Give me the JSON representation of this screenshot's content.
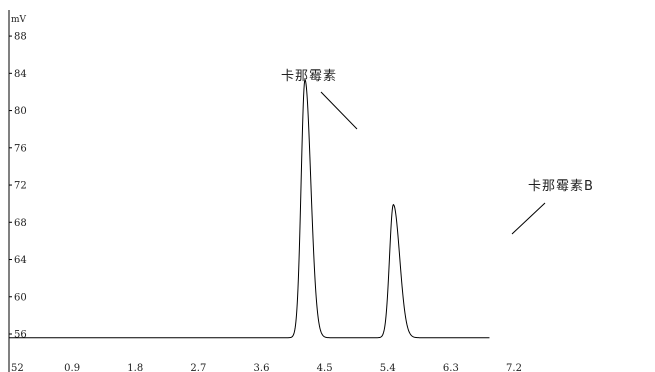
{
  "chart_data": {
    "type": "line",
    "title": "",
    "xlabel": "",
    "ylabel": "mV",
    "xlim": [
      0.0,
      7.2
    ],
    "ylim": [
      52,
      90
    ],
    "x_ticks": [
      0.9,
      1.8,
      2.7,
      3.6,
      4.5,
      5.4,
      6.3,
      7.2
    ],
    "x_tick_labels": [
      "0.9",
      "1.8",
      "2.7",
      "3.6",
      "4.5",
      "5.4",
      "6.3",
      "7.2"
    ],
    "y_ticks": [
      56,
      60,
      64,
      68,
      72,
      76,
      80,
      84,
      88
    ],
    "y_tick_labels": [
      "56",
      "60",
      "64",
      "68",
      "72",
      "76",
      "80",
      "84",
      "88"
    ],
    "corner_label": "52",
    "grid": false,
    "baseline": 55.6,
    "x_end": 6.85,
    "series": [
      {
        "peaks": [
          {
            "center": 4.22,
            "height": 83.3,
            "width": 0.055,
            "tail": 0.08
          },
          {
            "center": 5.48,
            "height": 69.9,
            "width": 0.055,
            "tail": 0.1
          }
        ]
      }
    ],
    "annotations": [
      {
        "text": "卡那霉素",
        "x": 4.22,
        "y": 83.3
      },
      {
        "text": "卡那霉素B",
        "x": 5.48,
        "y": 69.9
      }
    ]
  }
}
